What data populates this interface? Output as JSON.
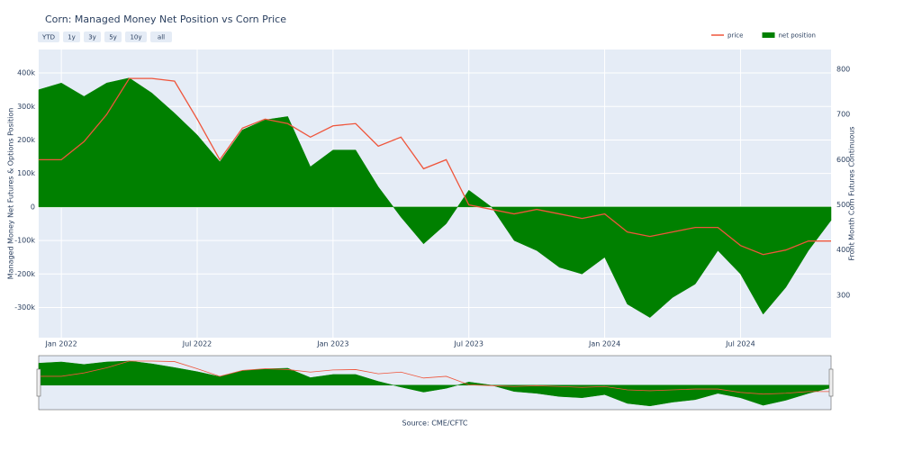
{
  "chart_data": {
    "type": "dual_axis_area_line",
    "title": "Corn: Managed Money Net Position vs Corn Price",
    "source": "Source: CME/CFTC",
    "y_label": "Managed Money Net Futures & Options Position",
    "y2_label": "Front Month Corn Futures Continuous",
    "range_buttons": [
      "YTD",
      "1y",
      "3y",
      "5y",
      "10y",
      "all"
    ],
    "legend_position": "top-right",
    "grid": true,
    "x": [
      "2021-12",
      "2022-01",
      "2022-02",
      "2022-03",
      "2022-04",
      "2022-05",
      "2022-06",
      "2022-07",
      "2022-08",
      "2022-09",
      "2022-10",
      "2022-11",
      "2022-12",
      "2023-01",
      "2023-02",
      "2023-03",
      "2023-04",
      "2023-05",
      "2023-06",
      "2023-07",
      "2023-08",
      "2023-09",
      "2023-10",
      "2023-11",
      "2023-12",
      "2024-01",
      "2024-02",
      "2024-03",
      "2024-04",
      "2024-05",
      "2024-06",
      "2024-07",
      "2024-08",
      "2024-09",
      "2024-10",
      "2024-11"
    ],
    "xlim": [
      "2021-12",
      "2024-11"
    ],
    "xticks": [
      {
        "value": "2022-01",
        "label": "Jan 2022"
      },
      {
        "value": "2022-07",
        "label": "Jul 2022"
      },
      {
        "value": "2023-01",
        "label": "Jan 2023"
      },
      {
        "value": "2023-07",
        "label": "Jul 2023"
      },
      {
        "value": "2024-01",
        "label": "Jan 2024"
      },
      {
        "value": "2024-07",
        "label": "Jul 2024"
      }
    ],
    "ylim": [
      -390000,
      470000
    ],
    "yticks": [
      {
        "value": -300000,
        "label": "-300k"
      },
      {
        "value": -200000,
        "label": "-200k"
      },
      {
        "value": -100000,
        "label": "-100k"
      },
      0,
      {
        "value": 100000,
        "label": "100k"
      },
      {
        "value": 200000,
        "label": "200k"
      },
      {
        "value": 300000,
        "label": "300k"
      },
      {
        "value": 400000,
        "label": "400k"
      }
    ],
    "y2lim": [
      206,
      844
    ],
    "y2ticks": [
      300,
      400,
      500,
      600,
      700,
      800
    ],
    "series": [
      {
        "name": "price",
        "kind": "line",
        "axis": "y2",
        "color": "#ef553b",
        "values": [
          600,
          600,
          640,
          700,
          780,
          780,
          774,
          690,
          600,
          670,
          690,
          680,
          650,
          675,
          680,
          630,
          650,
          580,
          600,
          500,
          490,
          480,
          490,
          480,
          470,
          480,
          440,
          430,
          440,
          450,
          450,
          410,
          390,
          400,
          420,
          420
        ]
      },
      {
        "name": "net position",
        "kind": "area",
        "color": "#008000",
        "values": [
          350000,
          370000,
          330000,
          370000,
          385000,
          340000,
          280000,
          215000,
          135000,
          230000,
          260000,
          270000,
          120000,
          170000,
          170000,
          60000,
          -30000,
          -110000,
          -50000,
          50000,
          0,
          -100000,
          -130000,
          -180000,
          -200000,
          -150000,
          -290000,
          -330000,
          -270000,
          -230000,
          -130000,
          -200000,
          -320000,
          -240000,
          -130000,
          -40000
        ]
      }
    ]
  }
}
